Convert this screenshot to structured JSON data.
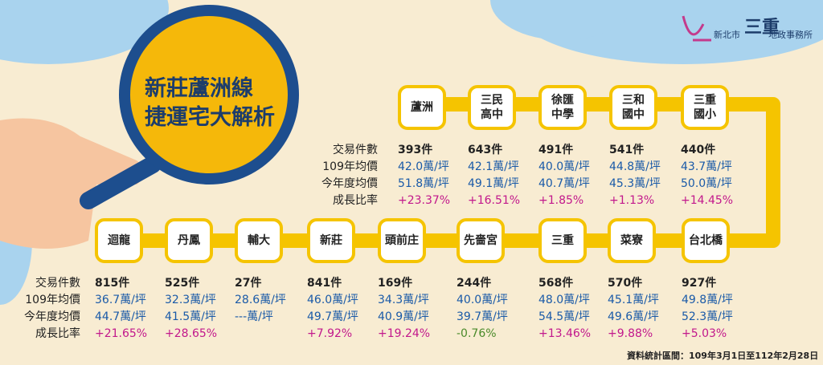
{
  "title": [
    "新莊蘆洲線",
    "捷運宅大解析"
  ],
  "logo": {
    "city": "新北市",
    "big": "三重",
    "office": "地政事務所"
  },
  "row_labels": [
    "交易件數",
    "109年均價",
    "今年度均價",
    "成長比率"
  ],
  "stations_top": [
    {
      "name": "蘆洲",
      "count": "393件",
      "price_109": "42.0萬/坪",
      "price_now": "51.8萬/坪",
      "growth": "+23.37%"
    },
    {
      "name": "三民\n高中",
      "count": "643件",
      "price_109": "42.1萬/坪",
      "price_now": "49.1萬/坪",
      "growth": "+16.51%"
    },
    {
      "name": "徐匯\n中學",
      "count": "491件",
      "price_109": "40.0萬/坪",
      "price_now": "40.7萬/坪",
      "growth": "+1.85%"
    },
    {
      "name": "三和\n國中",
      "count": "541件",
      "price_109": "44.8萬/坪",
      "price_now": "45.3萬/坪",
      "growth": "+1.13%"
    },
    {
      "name": "三重\n國小",
      "count": "440件",
      "price_109": "43.7萬/坪",
      "price_now": "50.0萬/坪",
      "growth": "+14.45%"
    }
  ],
  "stations_bottom": [
    {
      "name": "迴龍",
      "count": "815件",
      "price_109": "36.7萬/坪",
      "price_now": "44.7萬/坪",
      "growth": "+21.65%"
    },
    {
      "name": "丹鳳",
      "count": "525件",
      "price_109": "32.3萬/坪",
      "price_now": "41.5萬/坪",
      "growth": "+28.65%"
    },
    {
      "name": "輔大",
      "count": "27件",
      "price_109": "28.6萬/坪",
      "price_now": "---萬/坪"
    },
    {
      "name": "新莊",
      "count": "841件",
      "price_109": "46.0萬/坪",
      "price_now": "49.7萬/坪",
      "growth": "+7.92%"
    },
    {
      "name": "頭前庄",
      "count": "169件",
      "price_109": "34.3萬/坪",
      "price_now": "40.9萬/坪",
      "growth": "+19.24%"
    },
    {
      "name": "先嗇宮",
      "count": "244件",
      "price_109": "40.0萬/坪",
      "price_now": "39.7萬/坪",
      "growth": "-0.76%"
    },
    {
      "name": "三重",
      "count": "568件",
      "price_109": "48.0萬/坪",
      "price_now": "54.5萬/坪",
      "growth": "+13.46%"
    },
    {
      "name": "菜寮",
      "count": "570件",
      "price_109": "45.1萬/坪",
      "price_now": "49.6萬/坪",
      "growth": "+9.88%"
    },
    {
      "name": "台北橋",
      "count": "927件",
      "price_109": "49.8萬/坪",
      "price_now": "52.3萬/坪",
      "growth": "+5.03%"
    }
  ],
  "note": "資料統計區間：109年3月1日至112年2月28日"
}
